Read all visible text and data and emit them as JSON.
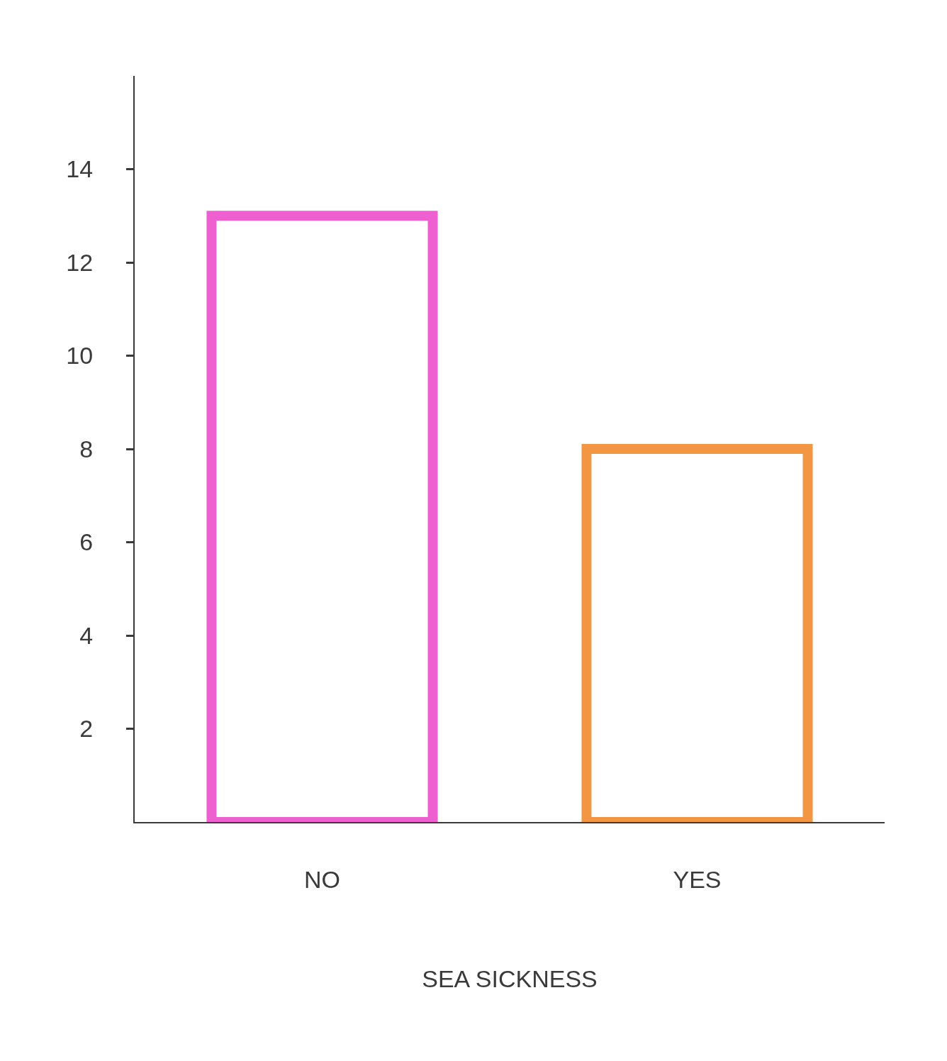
{
  "chart_data": {
    "type": "bar",
    "xlabel": "SEA SICKNESS",
    "categories": [
      "NO",
      "YES"
    ],
    "values": [
      13,
      8
    ],
    "colors": [
      "#ee5fcf",
      "#f39644"
    ],
    "ylim": [
      0,
      16
    ],
    "yticks": [
      2,
      4,
      6,
      8,
      10,
      12,
      14
    ],
    "grid": false,
    "legend": false
  }
}
